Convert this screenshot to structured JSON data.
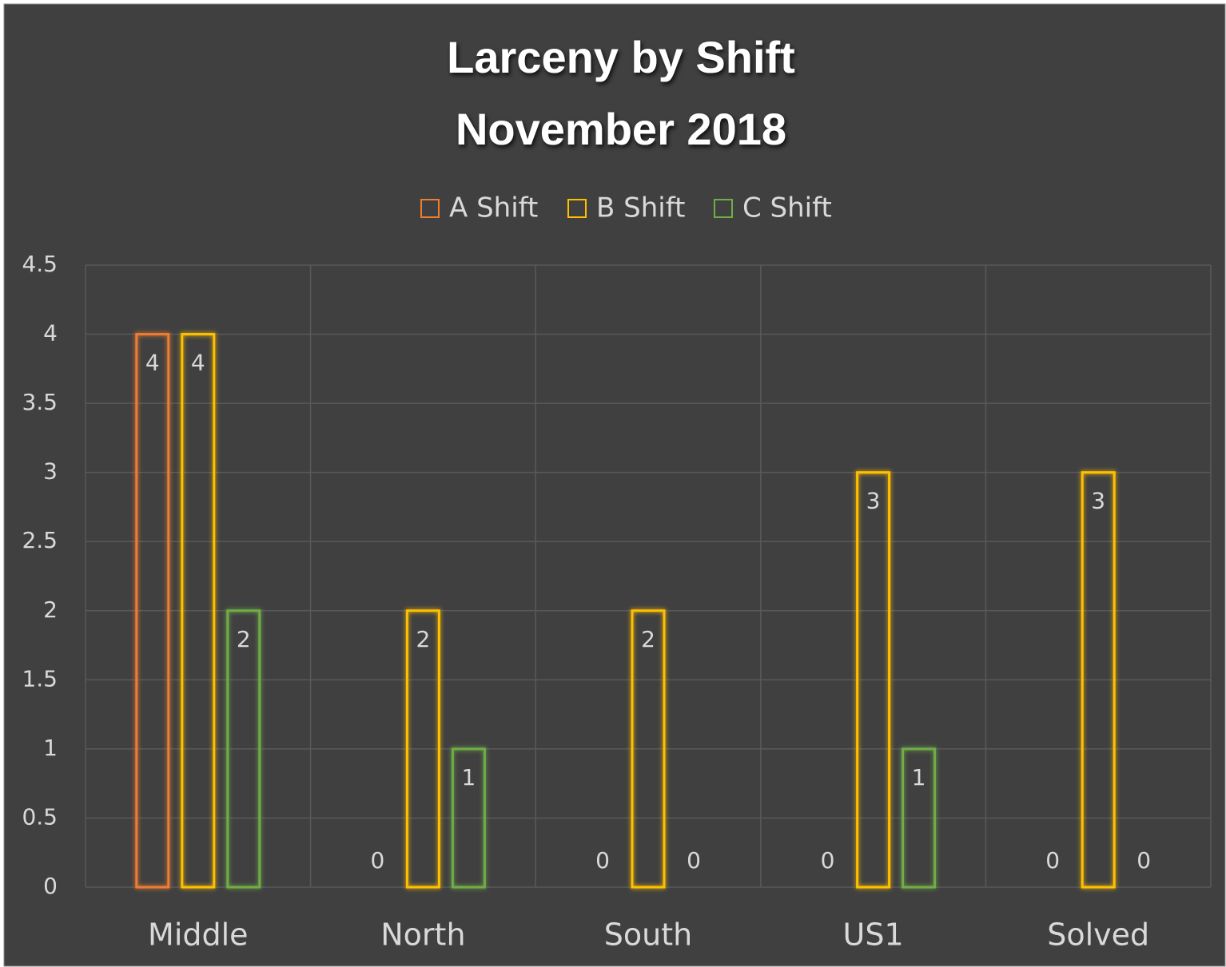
{
  "chart_data": {
    "type": "bar",
    "title": [
      "Larceny by Shift",
      "November 2018"
    ],
    "categories": [
      "Middle",
      "North",
      "South",
      "US1",
      "Solved"
    ],
    "series": [
      {
        "name": "A Shift",
        "color": "#ed7d31",
        "values": [
          4,
          0,
          0,
          0,
          0
        ]
      },
      {
        "name": "B Shift",
        "color": "#ffc000",
        "values": [
          4,
          2,
          2,
          3,
          3
        ]
      },
      {
        "name": "C Shift",
        "color": "#70ad47",
        "values": [
          2,
          1,
          0,
          1,
          0
        ]
      }
    ],
    "ylim": [
      0,
      4.5
    ],
    "yticks": [
      0,
      0.5,
      1,
      1.5,
      2,
      2.5,
      3,
      3.5,
      4,
      4.5
    ],
    "grid": true,
    "legend": "top"
  }
}
